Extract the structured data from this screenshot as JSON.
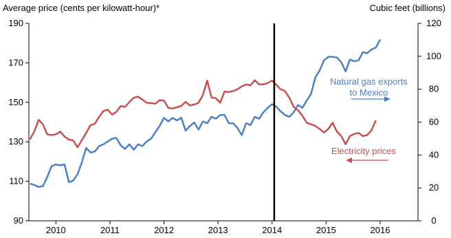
{
  "colors": {
    "gas": "#4a80c8",
    "electricity": "#c8504f",
    "axis": "#000000",
    "event_line": "#000000"
  },
  "chart_data": {
    "type": "line",
    "left_axis": {
      "title": "Average price (cents per kilowatt-hour)*",
      "range": [
        90,
        190
      ],
      "ticks": [
        90,
        110,
        130,
        150,
        170,
        190
      ]
    },
    "right_axis": {
      "title": "Cubic feet (billions)",
      "range": [
        0,
        120
      ],
      "ticks": [
        0,
        20,
        40,
        60,
        80,
        100,
        120
      ]
    },
    "x_axis": {
      "range": [
        2009.5,
        2016.7
      ],
      "tick_labels": [
        "2010",
        "2011",
        "2012",
        "2013",
        "2014",
        "2015",
        "2016"
      ]
    },
    "event_line_x": 2014.04,
    "annotations": {
      "gas": [
        "Natural gas exports",
        "to Mexico"
      ],
      "electricity": "Electricity prices"
    },
    "series": [
      {
        "name": "Natural gas exports to Mexico",
        "axis": "right",
        "color": "#4a80c8",
        "points": [
          [
            2009.52,
            22.6
          ],
          [
            2009.6,
            21.8
          ],
          [
            2009.68,
            20.6
          ],
          [
            2009.76,
            21.1
          ],
          [
            2009.84,
            26.6
          ],
          [
            2009.92,
            33.2
          ],
          [
            2010.0,
            34.3
          ],
          [
            2010.08,
            33.7
          ],
          [
            2010.16,
            34.3
          ],
          [
            2010.24,
            23.5
          ],
          [
            2010.32,
            24.4
          ],
          [
            2010.4,
            28.3
          ],
          [
            2010.48,
            35.4
          ],
          [
            2010.56,
            44.3
          ],
          [
            2010.64,
            41.5
          ],
          [
            2010.72,
            42.1
          ],
          [
            2010.8,
            45.4
          ],
          [
            2010.88,
            46.5
          ],
          [
            2010.96,
            48.2
          ],
          [
            2011.04,
            49.9
          ],
          [
            2011.12,
            50.4
          ],
          [
            2011.2,
            45.9
          ],
          [
            2011.28,
            43.7
          ],
          [
            2011.36,
            46.5
          ],
          [
            2011.44,
            43.2
          ],
          [
            2011.52,
            46.5
          ],
          [
            2011.6,
            45.4
          ],
          [
            2011.68,
            48.2
          ],
          [
            2011.76,
            49.9
          ],
          [
            2011.84,
            53.8
          ],
          [
            2011.92,
            57.6
          ],
          [
            2012.0,
            62.6
          ],
          [
            2012.08,
            60.4
          ],
          [
            2012.16,
            62.6
          ],
          [
            2012.24,
            61.0
          ],
          [
            2012.32,
            62.6
          ],
          [
            2012.4,
            54.9
          ],
          [
            2012.48,
            57.6
          ],
          [
            2012.56,
            59.8
          ],
          [
            2012.64,
            55.4
          ],
          [
            2012.72,
            60.4
          ],
          [
            2012.8,
            59.3
          ],
          [
            2012.88,
            63.2
          ],
          [
            2012.96,
            62.0
          ],
          [
            2013.04,
            64.3
          ],
          [
            2013.12,
            64.3
          ],
          [
            2013.2,
            59.3
          ],
          [
            2013.28,
            59.3
          ],
          [
            2013.36,
            56.5
          ],
          [
            2013.44,
            52.1
          ],
          [
            2013.52,
            59.3
          ],
          [
            2013.6,
            58.2
          ],
          [
            2013.68,
            63.2
          ],
          [
            2013.76,
            62.0
          ],
          [
            2013.84,
            66.0
          ],
          [
            2013.92,
            68.7
          ],
          [
            2014.0,
            70.9
          ],
          [
            2014.08,
            69.3
          ],
          [
            2014.16,
            66.5
          ],
          [
            2014.24,
            64.3
          ],
          [
            2014.32,
            63.2
          ],
          [
            2014.4,
            66.0
          ],
          [
            2014.48,
            70.4
          ],
          [
            2014.56,
            68.7
          ],
          [
            2014.64,
            73.1
          ],
          [
            2014.72,
            77.0
          ],
          [
            2014.8,
            87.0
          ],
          [
            2014.88,
            91.4
          ],
          [
            2014.96,
            97.5
          ],
          [
            2015.04,
            99.7
          ],
          [
            2015.12,
            99.7
          ],
          [
            2015.2,
            99.2
          ],
          [
            2015.28,
            96.4
          ],
          [
            2015.36,
            90.8
          ],
          [
            2015.44,
            98.0
          ],
          [
            2015.52,
            97.0
          ],
          [
            2015.6,
            97.5
          ],
          [
            2015.68,
            102.5
          ],
          [
            2015.76,
            101.9
          ],
          [
            2015.84,
            104.1
          ],
          [
            2015.92,
            105.3
          ],
          [
            2016.0,
            110.2
          ]
        ]
      },
      {
        "name": "Electricity prices",
        "axis": "left",
        "color": "#c8504f",
        "points": [
          [
            2009.52,
            131.3
          ],
          [
            2009.6,
            135.3
          ],
          [
            2009.68,
            141.1
          ],
          [
            2009.76,
            138.9
          ],
          [
            2009.84,
            133.8
          ],
          [
            2009.92,
            133.4
          ],
          [
            2010.0,
            133.8
          ],
          [
            2010.08,
            135.2
          ],
          [
            2010.16,
            132.7
          ],
          [
            2010.24,
            131.1
          ],
          [
            2010.32,
            130.7
          ],
          [
            2010.4,
            127.2
          ],
          [
            2010.48,
            130.9
          ],
          [
            2010.56,
            134.5
          ],
          [
            2010.64,
            138.4
          ],
          [
            2010.72,
            139.1
          ],
          [
            2010.8,
            142.7
          ],
          [
            2010.88,
            145.6
          ],
          [
            2010.96,
            146.3
          ],
          [
            2011.04,
            143.8
          ],
          [
            2011.12,
            145.2
          ],
          [
            2011.2,
            148.2
          ],
          [
            2011.28,
            147.7
          ],
          [
            2011.36,
            150.2
          ],
          [
            2011.44,
            152.3
          ],
          [
            2011.52,
            152.9
          ],
          [
            2011.6,
            151.4
          ],
          [
            2011.68,
            149.8
          ],
          [
            2011.76,
            149.6
          ],
          [
            2011.84,
            149.3
          ],
          [
            2011.92,
            151.1
          ],
          [
            2012.0,
            150.9
          ],
          [
            2012.08,
            147.2
          ],
          [
            2012.16,
            146.9
          ],
          [
            2012.24,
            147.5
          ],
          [
            2012.32,
            148.2
          ],
          [
            2012.4,
            150.2
          ],
          [
            2012.48,
            148.4
          ],
          [
            2012.56,
            148.9
          ],
          [
            2012.64,
            149.8
          ],
          [
            2012.72,
            153.7
          ],
          [
            2012.8,
            161.0
          ],
          [
            2012.88,
            152.5
          ],
          [
            2012.96,
            152.1
          ],
          [
            2013.04,
            149.8
          ],
          [
            2013.12,
            155.5
          ],
          [
            2013.2,
            155.2
          ],
          [
            2013.28,
            155.7
          ],
          [
            2013.36,
            156.6
          ],
          [
            2013.44,
            158.1
          ],
          [
            2013.52,
            159.1
          ],
          [
            2013.6,
            158.6
          ],
          [
            2013.68,
            161.2
          ],
          [
            2013.76,
            159.1
          ],
          [
            2013.84,
            159.1
          ],
          [
            2013.92,
            159.8
          ],
          [
            2014.0,
            161.0
          ],
          [
            2014.08,
            158.9
          ],
          [
            2014.16,
            156.6
          ],
          [
            2014.24,
            155.7
          ],
          [
            2014.32,
            152.3
          ],
          [
            2014.4,
            147.7
          ],
          [
            2014.48,
            146.0
          ],
          [
            2014.56,
            143.3
          ],
          [
            2014.64,
            139.7
          ],
          [
            2014.72,
            138.9
          ],
          [
            2014.8,
            138.1
          ],
          [
            2014.88,
            136.5
          ],
          [
            2014.96,
            134.7
          ],
          [
            2015.04,
            136.5
          ],
          [
            2015.12,
            139.7
          ],
          [
            2015.2,
            135.2
          ],
          [
            2015.28,
            132.9
          ],
          [
            2015.36,
            128.8
          ],
          [
            2015.44,
            132.9
          ],
          [
            2015.52,
            134.0
          ],
          [
            2015.6,
            134.5
          ],
          [
            2015.68,
            132.9
          ],
          [
            2015.76,
            133.4
          ],
          [
            2015.84,
            135.9
          ],
          [
            2015.92,
            140.9
          ]
        ]
      }
    ]
  }
}
